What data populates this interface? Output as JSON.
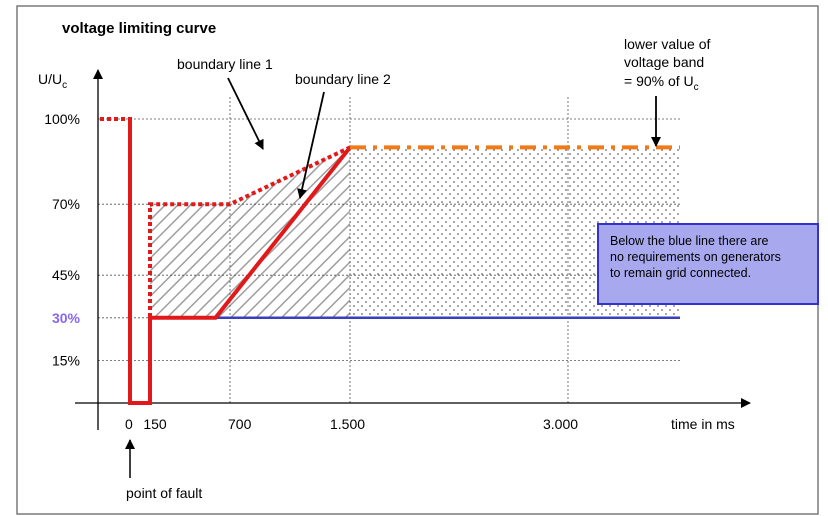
{
  "chart_data": {
    "type": "line",
    "title": "voltage limiting curve",
    "ylabel_base": "U/U",
    "ylabel_sub": "c",
    "xlabel": "time in ms",
    "x_ticks": [
      {
        "value": 0,
        "label": "0"
      },
      {
        "value": 150,
        "label": "150"
      },
      {
        "value": 700,
        "label": "700"
      },
      {
        "value": 1500,
        "label": "1.500"
      },
      {
        "value": 3000,
        "label": "3.000"
      }
    ],
    "y_ticks": [
      {
        "value": 100,
        "label": "100%",
        "highlight": false
      },
      {
        "value": 70,
        "label": "70%",
        "highlight": false
      },
      {
        "value": 45,
        "label": "45%",
        "highlight": false
      },
      {
        "value": 30,
        "label": "30%",
        "highlight": true
      },
      {
        "value": 15,
        "label": "15%",
        "highlight": false
      }
    ],
    "series": [
      {
        "key": "boundary1",
        "color": "#e2191b",
        "style": "dotted",
        "points": [
          [
            -200,
            100
          ],
          [
            0,
            100
          ],
          [
            0,
            0
          ],
          [
            150,
            0
          ],
          [
            150,
            70
          ],
          [
            700,
            70
          ],
          [
            1500,
            90
          ]
        ]
      },
      {
        "key": "boundary2",
        "color": "#e2191b",
        "style": "solid",
        "points": [
          [
            0,
            100
          ],
          [
            0,
            0
          ],
          [
            150,
            0
          ],
          [
            150,
            30
          ],
          [
            600,
            30
          ],
          [
            1500,
            90
          ]
        ]
      },
      {
        "key": "blue",
        "color": "#3a3fbf",
        "style": "solid",
        "points": [
          [
            150,
            0
          ],
          [
            150,
            30
          ],
          [
            4500,
            30
          ]
        ]
      },
      {
        "key": "band",
        "color": "#f07a18",
        "style": "dashdot",
        "points": [
          [
            1500,
            90
          ],
          [
            4500,
            90
          ]
        ]
      }
    ],
    "annotations": {
      "boundary1": "boundary line 1",
      "boundary2": "boundary line 2",
      "band_line1": "lower value of",
      "band_line2": "voltage band",
      "band_line3_base": "= 90% of U",
      "band_line3_sub": "c",
      "fault": "point of fault",
      "note_line1": "Below the blue line there are",
      "note_line2": "no requirements on generators",
      "note_line3": "to remain grid connected."
    },
    "colors": {
      "red": "#e2191b",
      "blue": "#3a3fbf",
      "orange": "#f07a18",
      "note_bg": "#a8a8ef",
      "note_border": "#3333cc",
      "highlight_label": "#8866ee"
    }
  }
}
